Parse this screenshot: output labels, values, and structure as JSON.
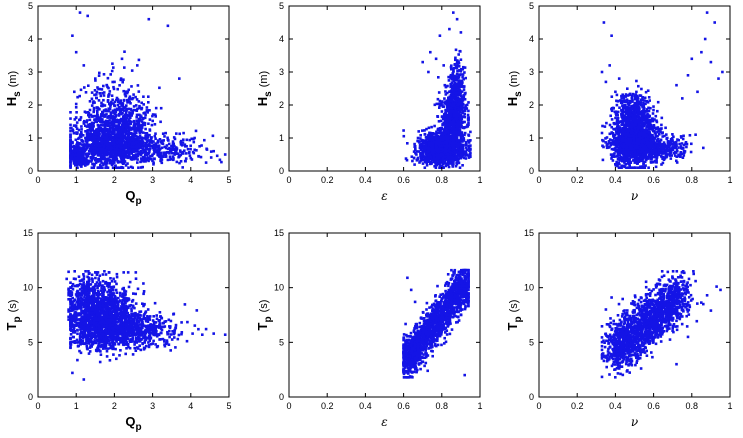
{
  "colors": {
    "marker": "#1414e6",
    "axes": "#000000",
    "background": "#ffffff"
  },
  "chart_data": [
    {
      "type": "scatter",
      "xlabel": "Q",
      "xlabel_sub": "p",
      "ylabel": "H",
      "ylabel_sub": "s",
      "ylabel_unit": "(m)",
      "xlim": [
        0,
        5
      ],
      "ylim": [
        0,
        5
      ],
      "xticks": [
        "0",
        "1",
        "2",
        "3",
        "4",
        "5"
      ],
      "yticks": [
        "0",
        "1",
        "2",
        "3",
        "4",
        "5"
      ],
      "grid": false,
      "points": [
        [
          0.9,
          4.1
        ],
        [
          1.0,
          3.6
        ],
        [
          1.1,
          4.8
        ],
        [
          1.3,
          4.7
        ],
        [
          1.2,
          3.2
        ],
        [
          2.2,
          3.4
        ],
        [
          2.9,
          4.6
        ],
        [
          3.4,
          4.4
        ],
        [
          3.7,
          2.8
        ],
        [
          4.1,
          1.0
        ],
        [
          4.6,
          0.6
        ],
        [
          4.9,
          0.5
        ],
        [
          1.5,
          2.8
        ],
        [
          2.6,
          3.2
        ],
        [
          1.8,
          2.6
        ],
        [
          0.95,
          2.4
        ]
      ],
      "clusters": [
        {
          "cx": 1.9,
          "cy": 0.65,
          "sx": 0.55,
          "sy": 0.45,
          "n": 1400,
          "ymin": 0.1,
          "xmin": 0.85,
          "xmax": 3.6
        },
        {
          "cx": 2.1,
          "cy": 1.4,
          "sx": 0.45,
          "sy": 0.6,
          "n": 500,
          "ymin": 0.2,
          "xmin": 1.0,
          "xmax": 3.4
        },
        {
          "cx": 3.4,
          "cy": 0.5,
          "sx": 0.5,
          "sy": 0.25,
          "n": 220,
          "ymin": 0.1,
          "xmin": 2.5,
          "xmax": 4.8
        },
        {
          "cx": 1.05,
          "cy": 0.35,
          "sx": 0.1,
          "sy": 0.15,
          "n": 200,
          "ymin": 0.1,
          "xmin": 0.85,
          "xmax": 1.3
        }
      ]
    },
    {
      "type": "scatter",
      "xlabel": "ε",
      "xlabel_sub": "",
      "ylabel": "H",
      "ylabel_sub": "s",
      "ylabel_unit": "(m)",
      "xlim": [
        0,
        1
      ],
      "ylim": [
        0,
        5
      ],
      "xticks": [
        "0",
        "0.2",
        "0.4",
        "0.6",
        "0.8",
        "1"
      ],
      "yticks": [
        "0",
        "1",
        "2",
        "3",
        "4",
        "5"
      ],
      "grid": false,
      "points": [
        [
          0.74,
          3.6
        ],
        [
          0.77,
          3.4
        ],
        [
          0.79,
          4.1
        ],
        [
          0.81,
          3.2
        ],
        [
          0.86,
          4.8
        ],
        [
          0.88,
          4.6
        ],
        [
          0.7,
          3.3
        ],
        [
          0.84,
          4.3
        ],
        [
          0.9,
          4.2
        ],
        [
          0.73,
          3.0
        ]
      ],
      "clusters": [
        {
          "cx": 0.8,
          "cy": 0.55,
          "sx": 0.06,
          "sy": 0.3,
          "n": 1300,
          "ymin": 0.1,
          "xmin": 0.6,
          "xmax": 0.95
        },
        {
          "cx": 0.86,
          "cy": 1.4,
          "sx": 0.035,
          "sy": 0.55,
          "n": 600,
          "ymin": 0.3,
          "xmin": 0.74,
          "xmax": 0.94
        },
        {
          "cx": 0.88,
          "cy": 2.4,
          "sx": 0.02,
          "sy": 0.5,
          "n": 200,
          "ymin": 1.0,
          "xmin": 0.8,
          "xmax": 0.94
        }
      ]
    },
    {
      "type": "scatter",
      "xlabel": "ν",
      "xlabel_sub": "",
      "ylabel": "H",
      "ylabel_sub": "s",
      "ylabel_unit": "(m)",
      "xlim": [
        0,
        1
      ],
      "ylim": [
        0,
        5
      ],
      "xticks": [
        "0",
        "0.2",
        "0.4",
        "0.6",
        "0.8",
        "1"
      ],
      "yticks": [
        "0",
        "1",
        "2",
        "3",
        "4",
        "5"
      ],
      "grid": false,
      "points": [
        [
          0.33,
          3.0
        ],
        [
          0.35,
          2.7
        ],
        [
          0.37,
          3.2
        ],
        [
          0.34,
          4.5
        ],
        [
          0.38,
          4.1
        ],
        [
          0.4,
          2.4
        ],
        [
          0.42,
          2.8
        ],
        [
          0.72,
          2.6
        ],
        [
          0.75,
          2.2
        ],
        [
          0.78,
          2.9
        ],
        [
          0.8,
          3.4
        ],
        [
          0.83,
          2.4
        ],
        [
          0.85,
          3.6
        ],
        [
          0.87,
          4.0
        ],
        [
          0.88,
          4.8
        ],
        [
          0.9,
          3.3
        ],
        [
          0.92,
          4.5
        ],
        [
          0.94,
          2.8
        ],
        [
          0.96,
          3.0
        ],
        [
          0.82,
          1.1
        ],
        [
          0.86,
          0.7
        ]
      ],
      "clusters": [
        {
          "cx": 0.5,
          "cy": 0.7,
          "sx": 0.06,
          "sy": 0.45,
          "n": 1500,
          "ymin": 0.1,
          "xmin": 0.33,
          "xmax": 0.8
        },
        {
          "cx": 0.5,
          "cy": 1.6,
          "sx": 0.05,
          "sy": 0.4,
          "n": 350,
          "ymin": 0.5,
          "xmin": 0.38,
          "xmax": 0.65
        },
        {
          "cx": 0.65,
          "cy": 0.6,
          "sx": 0.07,
          "sy": 0.25,
          "n": 250,
          "ymin": 0.1,
          "xmin": 0.5,
          "xmax": 0.88
        }
      ]
    },
    {
      "type": "scatter",
      "xlabel": "Q",
      "xlabel_sub": "p",
      "ylabel": "T",
      "ylabel_sub": "p",
      "ylabel_unit": "(s)",
      "xlim": [
        0,
        5
      ],
      "ylim": [
        0,
        15
      ],
      "xticks": [
        "0",
        "1",
        "2",
        "3",
        "4",
        "5"
      ],
      "yticks": [
        "0",
        "5",
        "10",
        "15"
      ],
      "grid": false,
      "points": [
        [
          0.75,
          10.8
        ],
        [
          0.8,
          9.9
        ],
        [
          0.9,
          2.2
        ],
        [
          1.2,
          1.6
        ],
        [
          4.3,
          5.7
        ],
        [
          4.6,
          5.8
        ],
        [
          4.9,
          5.7
        ],
        [
          4.2,
          6.2
        ],
        [
          3.9,
          5.1
        ],
        [
          1.5,
          11.4
        ],
        [
          1.7,
          11.2
        ]
      ],
      "clusters": [
        {
          "cx": 1.7,
          "cy": 6.3,
          "sx": 0.45,
          "sy": 1.8,
          "n": 1500,
          "ymin": 1.5,
          "ymax": 11.4,
          "xmin": 0.85,
          "xmax": 3.2
        },
        {
          "cx": 2.6,
          "cy": 5.8,
          "sx": 0.55,
          "sy": 1.0,
          "n": 500,
          "ymin": 2.5,
          "ymax": 10.5,
          "xmin": 1.6,
          "xmax": 4.4
        },
        {
          "cx": 1.3,
          "cy": 8.2,
          "sx": 0.3,
          "sy": 1.5,
          "n": 300,
          "ymin": 3.0,
          "ymax": 11.5,
          "xmin": 0.8,
          "xmax": 2.4
        }
      ]
    },
    {
      "type": "scatter",
      "xlabel": "ε",
      "xlabel_sub": "",
      "ylabel": "T",
      "ylabel_sub": "p",
      "ylabel_unit": "(s)",
      "xlim": [
        0,
        1
      ],
      "ylim": [
        0,
        15
      ],
      "xticks": [
        "0",
        "0.2",
        "0.4",
        "0.6",
        "0.8",
        "1"
      ],
      "yticks": [
        "0",
        "5",
        "10",
        "15"
      ],
      "grid": false,
      "points": [
        [
          0.62,
          10.9
        ],
        [
          0.64,
          9.8
        ],
        [
          0.6,
          2.3
        ],
        [
          0.92,
          2.0
        ],
        [
          0.94,
          11.4
        ],
        [
          0.9,
          11.5
        ],
        [
          0.66,
          8.7
        ]
      ],
      "clusters": [
        {
          "corr": true,
          "x0": 0.6,
          "x1": 0.93,
          "y0": 3.0,
          "y1": 10.5,
          "sx": 0.02,
          "sy": 0.9,
          "n": 1700,
          "ymin": 1.8,
          "ymax": 11.6,
          "xmin": 0.6,
          "xmax": 0.94
        }
      ]
    },
    {
      "type": "scatter",
      "xlabel": "ν",
      "xlabel_sub": "",
      "ylabel": "T",
      "ylabel_sub": "p",
      "ylabel_unit": "(s)",
      "xlim": [
        0,
        1
      ],
      "ylim": [
        0,
        15
      ],
      "xticks": [
        "0",
        "0.2",
        "0.4",
        "0.6",
        "0.8",
        "1"
      ],
      "yticks": [
        "0",
        "5",
        "10",
        "15"
      ],
      "grid": false,
      "points": [
        [
          0.34,
          3.3
        ],
        [
          0.35,
          8.0
        ],
        [
          0.38,
          9.1
        ],
        [
          0.86,
          8.5
        ],
        [
          0.9,
          7.9
        ],
        [
          0.93,
          10.1
        ],
        [
          0.95,
          9.8
        ],
        [
          0.82,
          10.6
        ],
        [
          0.88,
          9.3
        ],
        [
          0.78,
          5.5
        ],
        [
          0.72,
          3.0
        ]
      ],
      "clusters": [
        {
          "corr": true,
          "x0": 0.38,
          "x1": 0.75,
          "y0": 4.0,
          "y1": 9.5,
          "sx": 0.035,
          "sy": 1.1,
          "n": 1700,
          "ymin": 1.8,
          "ymax": 11.5,
          "xmin": 0.33,
          "xmax": 0.92
        }
      ]
    }
  ]
}
